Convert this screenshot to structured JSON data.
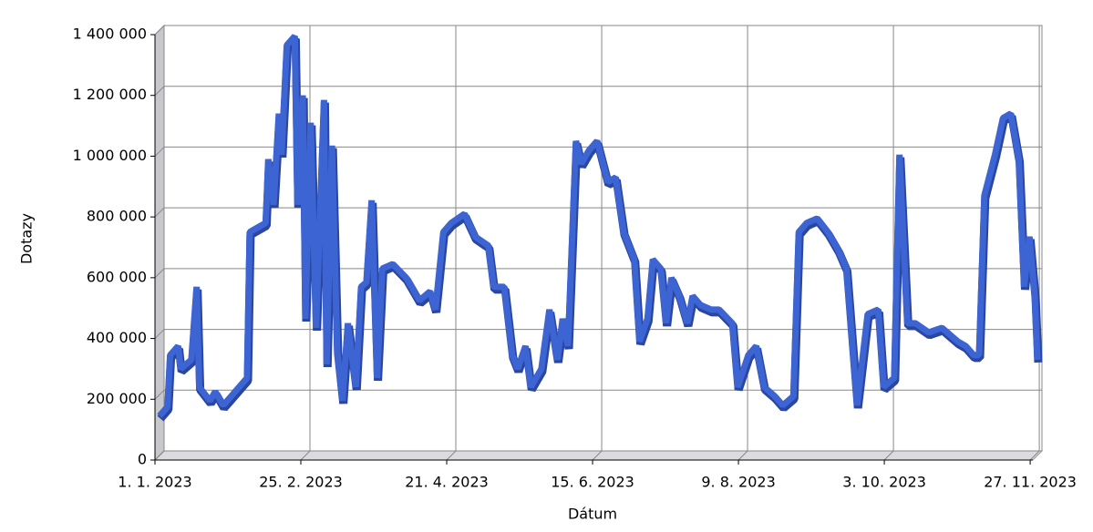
{
  "chart_data": {
    "type": "line",
    "x_label": "Dátum",
    "y_label": "Dotazy",
    "xlim": [
      "2023-01-01",
      "2023-11-28"
    ],
    "xticks": [
      {
        "value": "2023-01-01",
        "label": "1. 1. 2023"
      },
      {
        "value": "2023-02-25",
        "label": "25. 2. 2023"
      },
      {
        "value": "2023-04-21",
        "label": "21. 4. 2023"
      },
      {
        "value": "2023-06-15",
        "label": "15. 6. 2023"
      },
      {
        "value": "2023-08-09",
        "label": "9. 8. 2023"
      },
      {
        "value": "2023-10-03",
        "label": "3. 10. 2023"
      },
      {
        "value": "2023-11-27",
        "label": "27. 11. 2023"
      }
    ],
    "ylim": [
      0,
      1400000
    ],
    "yticks": [
      0,
      {
        "value": 200000,
        "label": "200 000"
      },
      {
        "value": 400000,
        "label": "400 000"
      },
      {
        "value": 600000,
        "label": "600 000"
      },
      {
        "value": 800000,
        "label": "800 000"
      },
      {
        "value": 1000000,
        "label": "1 000 000"
      },
      {
        "value": 1200000,
        "label": "1 200 000"
      },
      {
        "value": 1400000,
        "label": "1 400 000"
      }
    ],
    "grid": true,
    "x": [
      "2023-01-01",
      "2023-01-04",
      "2023-01-05",
      "2023-01-08",
      "2023-01-09",
      "2023-01-13",
      "2023-01-15",
      "2023-01-16",
      "2023-01-20",
      "2023-01-22",
      "2023-01-25",
      "2023-01-28",
      "2023-01-31",
      "2023-02-03",
      "2023-02-04",
      "2023-02-07",
      "2023-02-10",
      "2023-02-11",
      "2023-02-13",
      "2023-02-15",
      "2023-02-16",
      "2023-02-18",
      "2023-02-21",
      "2023-02-22",
      "2023-02-24",
      "2023-02-25",
      "2023-02-27",
      "2023-03-01",
      "2023-03-04",
      "2023-03-05",
      "2023-03-07",
      "2023-03-09",
      "2023-03-11",
      "2023-03-13",
      "2023-03-16",
      "2023-03-18",
      "2023-03-20",
      "2023-03-22",
      "2023-03-24",
      "2023-03-26",
      "2023-03-30",
      "2023-04-04",
      "2023-04-09",
      "2023-04-13",
      "2023-04-15",
      "2023-04-18",
      "2023-04-21",
      "2023-04-26",
      "2023-04-30",
      "2023-05-05",
      "2023-05-07",
      "2023-05-11",
      "2023-05-14",
      "2023-05-16",
      "2023-05-19",
      "2023-05-21",
      "2023-05-25",
      "2023-05-28",
      "2023-05-31",
      "2023-06-02",
      "2023-06-04",
      "2023-06-07",
      "2023-06-09",
      "2023-06-12",
      "2023-06-15",
      "2023-06-19",
      "2023-06-22",
      "2023-06-25",
      "2023-06-29",
      "2023-07-01",
      "2023-07-04",
      "2023-07-06",
      "2023-07-09",
      "2023-07-11",
      "2023-07-13",
      "2023-07-16",
      "2023-07-19",
      "2023-07-21",
      "2023-07-24",
      "2023-07-28",
      "2023-07-31",
      "2023-08-05",
      "2023-08-07",
      "2023-08-11",
      "2023-08-14",
      "2023-08-17",
      "2023-08-21",
      "2023-08-24",
      "2023-08-28",
      "2023-08-30",
      "2023-09-02",
      "2023-09-06",
      "2023-09-10",
      "2023-09-14",
      "2023-09-17",
      "2023-09-21",
      "2023-09-25",
      "2023-09-29",
      "2023-10-01",
      "2023-10-05",
      "2023-10-07",
      "2023-10-10",
      "2023-10-13",
      "2023-10-18",
      "2023-10-23",
      "2023-10-29",
      "2023-11-01",
      "2023-11-04",
      "2023-11-06",
      "2023-11-08",
      "2023-11-12",
      "2023-11-15",
      "2023-11-18",
      "2023-11-21",
      "2023-11-23",
      "2023-11-25",
      "2023-11-27",
      "2023-11-28"
    ],
    "series": [
      {
        "color": "#3c64d2",
        "values": [
          130000,
          160000,
          330000,
          360000,
          285000,
          315000,
          555000,
          225000,
          180000,
          210000,
          165000,
          195000,
          225000,
          255000,
          735000,
          750000,
          765000,
          975000,
          825000,
          1125000,
          990000,
          1350000,
          1380000,
          825000,
          1185000,
          450000,
          1095000,
          420000,
          1170000,
          300000,
          1020000,
          345000,
          180000,
          435000,
          225000,
          555000,
          570000,
          840000,
          255000,
          615000,
          630000,
          585000,
          510000,
          540000,
          480000,
          735000,
          765000,
          795000,
          720000,
          690000,
          555000,
          555000,
          330000,
          285000,
          360000,
          225000,
          285000,
          480000,
          315000,
          450000,
          360000,
          1035000,
          960000,
          1005000,
          1035000,
          900000,
          915000,
          735000,
          645000,
          375000,
          450000,
          645000,
          615000,
          435000,
          585000,
          525000,
          435000,
          525000,
          495000,
          480000,
          480000,
          435000,
          225000,
          330000,
          360000,
          225000,
          195000,
          165000,
          195000,
          735000,
          765000,
          780000,
          735000,
          675000,
          615000,
          165000,
          465000,
          480000,
          225000,
          255000,
          990000,
          435000,
          435000,
          405000,
          420000,
          375000,
          360000,
          330000,
          330000,
          855000,
          990000,
          1110000,
          1125000,
          975000,
          555000,
          720000,
          525000,
          315000
        ]
      }
    ]
  }
}
